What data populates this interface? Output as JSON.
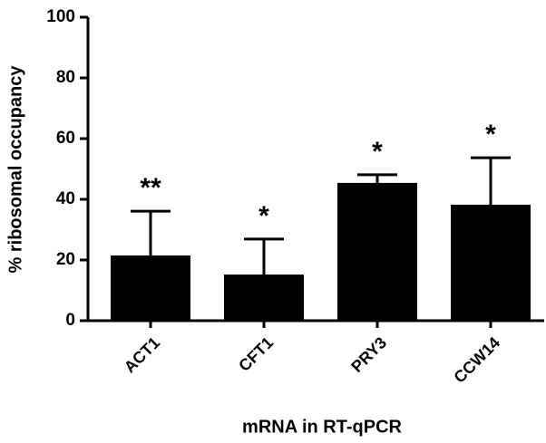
{
  "chart_data": {
    "type": "bar",
    "categories": [
      "ACT1",
      "CFT1",
      "PRY3",
      "CCW14"
    ],
    "values": [
      21.5,
      15.2,
      45.4,
      38.2
    ],
    "errors": [
      14.6,
      11.7,
      2.7,
      15.5
    ],
    "annotations": [
      "**",
      "*",
      "*",
      "*"
    ],
    "color": "#000000",
    "ylim": [
      0,
      100
    ],
    "yticks": [
      0,
      20,
      40,
      60,
      80,
      100
    ],
    "x_label": "mRNA in RT-qPCR",
    "y_label": "% ribosomal occupancy"
  }
}
